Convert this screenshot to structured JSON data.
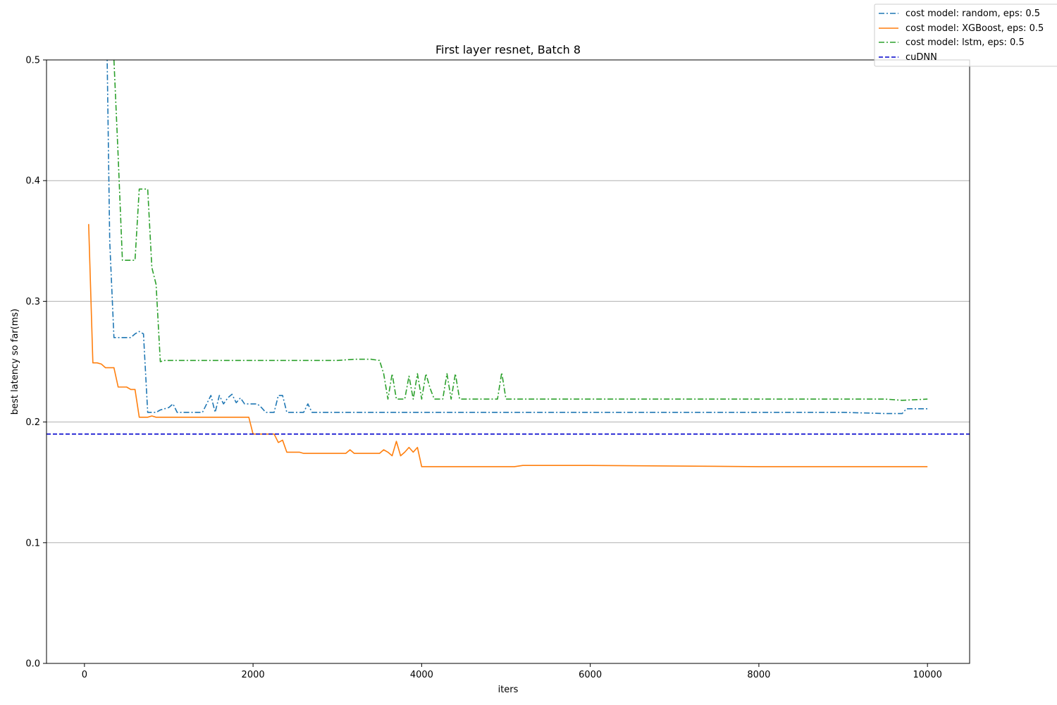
{
  "chart_data": {
    "type": "line",
    "title": "First layer resnet, Batch 8",
    "xlabel": "iters",
    "ylabel": "best latency so far(ms)",
    "xlim": [
      -450,
      10500
    ],
    "ylim": [
      0.0,
      0.5
    ],
    "xticks": [
      0,
      2000,
      4000,
      6000,
      8000,
      10000
    ],
    "yticks": [
      0.0,
      0.1,
      0.2,
      0.3,
      0.4,
      0.5
    ],
    "xtick_labels": [
      "0",
      "2000",
      "4000",
      "6000",
      "8000",
      "10000"
    ],
    "ytick_labels": [
      "0.0",
      "0.1",
      "0.2",
      "0.3",
      "0.4",
      "0.5"
    ],
    "grid": "horizontal",
    "legend_position": "top-right",
    "series": [
      {
        "name": "cost model: random, eps: 0.5",
        "color": "#1f77b4",
        "dash": "dashdot",
        "x": [
          250,
          300,
          350,
          400,
          500,
          550,
          600,
          650,
          700,
          750,
          800,
          850,
          900,
          950,
          1000,
          1050,
          1100,
          1150,
          1200,
          1300,
          1400,
          1450,
          1500,
          1550,
          1600,
          1650,
          1700,
          1750,
          1800,
          1850,
          1900,
          1950,
          2000,
          2050,
          2100,
          2150,
          2200,
          2250,
          2300,
          2350,
          2400,
          2500,
          2600,
          2650,
          2700,
          3000,
          4000,
          6000,
          8000,
          9000,
          9500,
          9600,
          9700,
          9750,
          9800,
          10000
        ],
        "y": [
          0.6,
          0.35,
          0.27,
          0.27,
          0.27,
          0.27,
          0.273,
          0.275,
          0.273,
          0.208,
          0.208,
          0.208,
          0.21,
          0.211,
          0.212,
          0.215,
          0.208,
          0.208,
          0.208,
          0.208,
          0.208,
          0.215,
          0.222,
          0.208,
          0.222,
          0.215,
          0.22,
          0.223,
          0.216,
          0.22,
          0.215,
          0.215,
          0.215,
          0.215,
          0.212,
          0.208,
          0.208,
          0.208,
          0.222,
          0.222,
          0.208,
          0.208,
          0.208,
          0.215,
          0.208,
          0.208,
          0.208,
          0.208,
          0.208,
          0.208,
          0.207,
          0.207,
          0.207,
          0.211,
          0.211,
          0.211
        ]
      },
      {
        "name": "cost model: XGBoost, eps: 0.5",
        "color": "#ff7f0e",
        "dash": "solid",
        "x": [
          50,
          100,
          150,
          200,
          250,
          300,
          350,
          400,
          450,
          500,
          550,
          600,
          650,
          700,
          750,
          800,
          850,
          900,
          1000,
          1200,
          1500,
          1800,
          1950,
          2000,
          2050,
          2100,
          2200,
          2250,
          2300,
          2350,
          2400,
          2500,
          2550,
          2600,
          2700,
          2800,
          2900,
          3000,
          3050,
          3100,
          3150,
          3200,
          3300,
          3400,
          3500,
          3550,
          3600,
          3650,
          3700,
          3750,
          3800,
          3850,
          3900,
          3950,
          4000,
          4050,
          5000,
          5100,
          5200,
          6000,
          8000,
          10000
        ],
        "y": [
          0.364,
          0.249,
          0.249,
          0.248,
          0.245,
          0.245,
          0.245,
          0.229,
          0.229,
          0.229,
          0.227,
          0.227,
          0.204,
          0.204,
          0.204,
          0.205,
          0.204,
          0.204,
          0.204,
          0.204,
          0.204,
          0.204,
          0.204,
          0.19,
          0.19,
          0.19,
          0.19,
          0.19,
          0.183,
          0.185,
          0.175,
          0.175,
          0.175,
          0.174,
          0.174,
          0.174,
          0.174,
          0.174,
          0.174,
          0.174,
          0.177,
          0.174,
          0.174,
          0.174,
          0.174,
          0.177,
          0.175,
          0.172,
          0.184,
          0.172,
          0.175,
          0.179,
          0.175,
          0.179,
          0.163,
          0.163,
          0.163,
          0.163,
          0.164,
          0.164,
          0.163,
          0.163
        ]
      },
      {
        "name": "cost model: lstm, eps: 0.5",
        "color": "#2ca02c",
        "dash": "dashdot",
        "x": [
          350,
          400,
          450,
          500,
          600,
          650,
          700,
          750,
          800,
          850,
          900,
          950,
          1000,
          1500,
          2000,
          2500,
          3000,
          3200,
          3400,
          3500,
          3550,
          3600,
          3650,
          3700,
          3800,
          3850,
          3900,
          3950,
          4000,
          4050,
          4100,
          4150,
          4200,
          4250,
          4300,
          4350,
          4400,
          4450,
          4900,
          4950,
          5000,
          6000,
          8000,
          9500,
          9700,
          10000
        ],
        "y": [
          0.5,
          0.42,
          0.334,
          0.334,
          0.334,
          0.393,
          0.393,
          0.393,
          0.328,
          0.314,
          0.25,
          0.251,
          0.251,
          0.251,
          0.251,
          0.251,
          0.251,
          0.252,
          0.252,
          0.251,
          0.24,
          0.219,
          0.24,
          0.219,
          0.219,
          0.238,
          0.219,
          0.24,
          0.219,
          0.24,
          0.228,
          0.219,
          0.219,
          0.219,
          0.24,
          0.219,
          0.24,
          0.219,
          0.219,
          0.241,
          0.219,
          0.219,
          0.219,
          0.219,
          0.218,
          0.219
        ]
      },
      {
        "name": "cuDNN",
        "color": "#0000cc",
        "dash": "dashed",
        "x": [
          -450,
          10500
        ],
        "y": [
          0.19,
          0.19
        ]
      }
    ]
  }
}
